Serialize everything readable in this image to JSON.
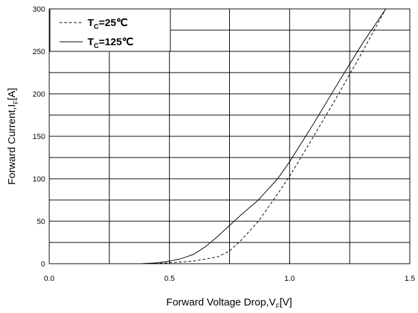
{
  "chart_data": {
    "type": "line",
    "xlabel": "Forward Voltage Drop,V",
    "xlabel_sub": "F",
    "xlabel_suffix": "[V]",
    "ylabel": "Forward Current,I",
    "ylabel_sub": "F",
    "ylabel_suffix": "[A]",
    "xlim": [
      0.0,
      1.5
    ],
    "ylim": [
      0,
      300
    ],
    "xticks": [
      0.0,
      0.5,
      1.0,
      1.5
    ],
    "xtick_labels": [
      "0.0",
      "0.5",
      "1.0",
      "1.5"
    ],
    "yticks": [
      0,
      50,
      100,
      150,
      200,
      250,
      300
    ],
    "ytick_labels": [
      "0",
      "50",
      "100",
      "150",
      "200",
      "250",
      "300"
    ],
    "grid": true,
    "legend_position": "top-left",
    "series": [
      {
        "name_main": "T",
        "name_sub": "C",
        "name_suffix": "=25℃",
        "dash": "dashed",
        "color": "#000000",
        "points": [
          [
            0.4,
            0
          ],
          [
            0.5,
            1
          ],
          [
            0.6,
            3
          ],
          [
            0.7,
            8
          ],
          [
            0.75,
            15
          ],
          [
            0.8,
            28
          ],
          [
            0.87,
            50
          ],
          [
            0.95,
            82
          ],
          [
            1.0,
            103
          ],
          [
            1.1,
            150
          ],
          [
            1.2,
            198
          ],
          [
            1.3,
            248
          ],
          [
            1.4,
            300
          ]
        ]
      },
      {
        "name_main": "T",
        "name_sub": "C",
        "name_suffix": "=125℃",
        "dash": "solid",
        "color": "#000000",
        "points": [
          [
            0.38,
            0
          ],
          [
            0.45,
            1
          ],
          [
            0.5,
            3
          ],
          [
            0.55,
            6
          ],
          [
            0.6,
            11
          ],
          [
            0.65,
            20
          ],
          [
            0.7,
            32
          ],
          [
            0.75,
            45
          ],
          [
            0.8,
            58
          ],
          [
            0.87,
            75
          ],
          [
            0.95,
            100
          ],
          [
            1.0,
            120
          ],
          [
            1.1,
            165
          ],
          [
            1.2,
            212
          ],
          [
            1.3,
            258
          ],
          [
            1.4,
            300
          ]
        ]
      }
    ]
  }
}
